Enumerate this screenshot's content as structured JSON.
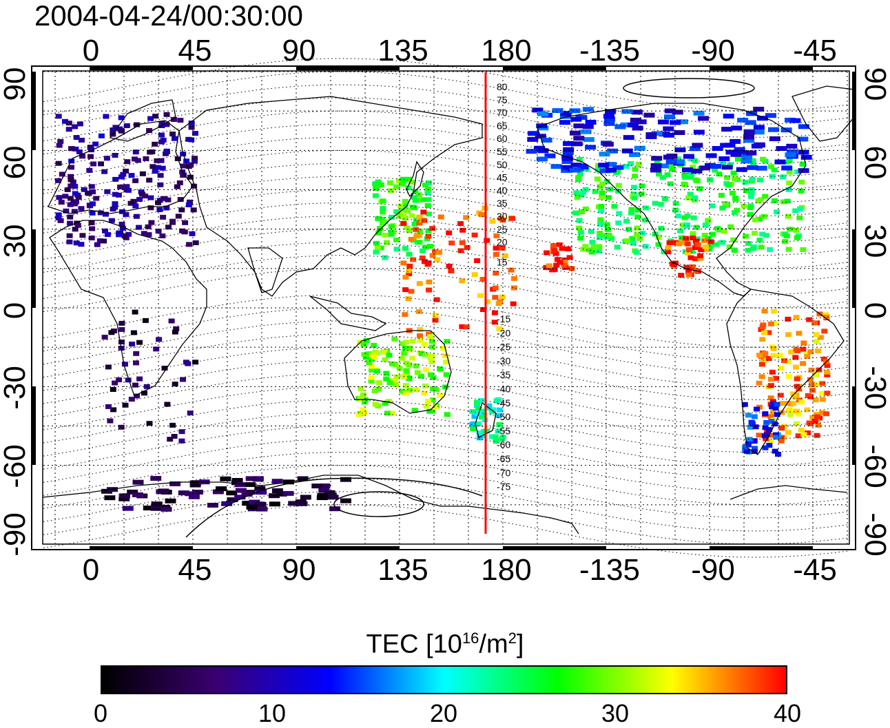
{
  "title": "2004-04-24/00:30:00",
  "top_ticks": [
    "0",
    "45",
    "90",
    "135",
    "180",
    "-135",
    "-90",
    "-45"
  ],
  "bottom_ticks": [
    "0",
    "45",
    "90",
    "135",
    "180",
    "-135",
    "-90",
    "-45"
  ],
  "left_ticks": [
    "90",
    "60",
    "30",
    "0",
    "-30",
    "-60",
    "-90"
  ],
  "right_ticks": [
    "90",
    "60",
    "30",
    "0",
    "-30",
    "-60",
    "-90"
  ],
  "contour_labels_north": [
    "80",
    "75",
    "70",
    "65",
    "60",
    "55",
    "50",
    "45",
    "40",
    "35",
    "30",
    "25",
    "20",
    "15"
  ],
  "contour_labels_south": [
    "-15",
    "-20",
    "-25",
    "-30",
    "-35",
    "-40",
    "-45",
    "-50",
    "-55",
    "-60",
    "-65",
    "-70",
    "-75"
  ],
  "colorbar": {
    "title_main": "TEC  [10",
    "title_exp": "16",
    "title_mid": "/m",
    "title_exp2": "2",
    "title_end": "]",
    "ticks": [
      "0",
      "10",
      "20",
      "30",
      "40"
    ],
    "colors": [
      "#000000",
      "#3a0070",
      "#0000ff",
      "#00ffff",
      "#00ff00",
      "#ffff00",
      "#ff0000"
    ]
  },
  "meridian_color": "#ff0000",
  "tec_regions": [
    {
      "region": "europe",
      "lat": 50,
      "lon": 15,
      "tec": 8
    },
    {
      "region": "north-america",
      "lat": 40,
      "lon": -100,
      "tec": 26
    },
    {
      "region": "canada-arctic",
      "lat": 65,
      "lon": -110,
      "tec": 13
    },
    {
      "region": "japan",
      "lat": 35,
      "lon": 135,
      "tec": 27
    },
    {
      "region": "pacific-tropics",
      "lat": 15,
      "lon": 160,
      "tec": 38
    },
    {
      "region": "hawaii",
      "lat": 20,
      "lon": -157,
      "tec": 40
    },
    {
      "region": "mexico",
      "lat": 20,
      "lon": -100,
      "tec": 38
    },
    {
      "region": "australia",
      "lat": -25,
      "lon": 135,
      "tec": 30
    },
    {
      "region": "new-zealand",
      "lat": -42,
      "lon": 172,
      "tec": 22
    },
    {
      "region": "south-america",
      "lat": -25,
      "lon": -55,
      "tec": 36
    },
    {
      "region": "patagonia",
      "lat": -45,
      "lon": -68,
      "tec": 14
    },
    {
      "region": "africa",
      "lat": -25,
      "lon": 25,
      "tec": 5
    },
    {
      "region": "antarctica",
      "lat": -70,
      "lon": 60,
      "tec": 4
    }
  ]
}
